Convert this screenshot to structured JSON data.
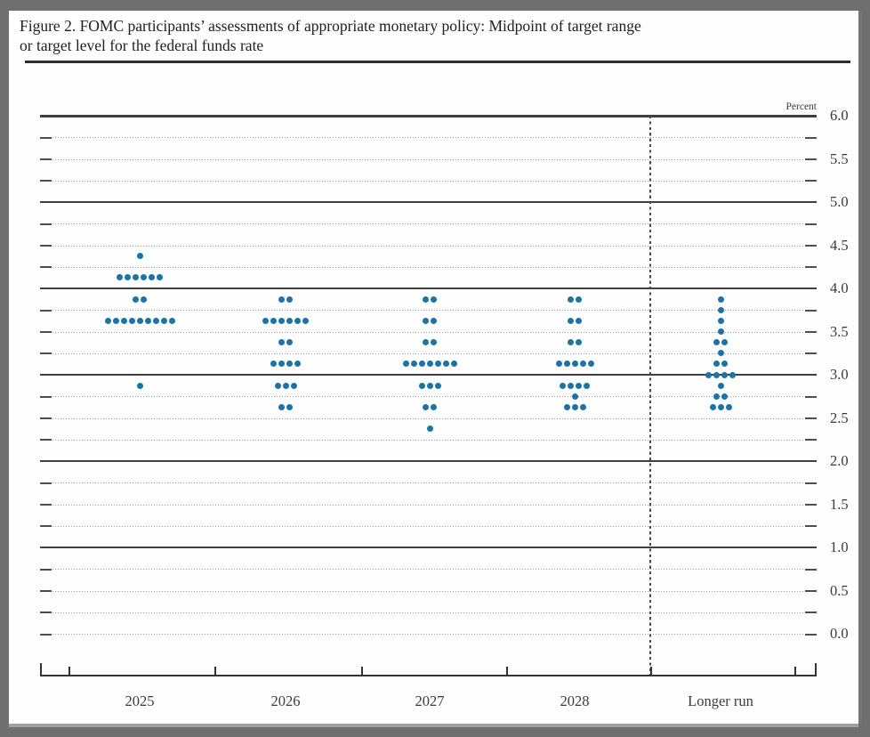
{
  "page": {
    "title_line1": "Figure 2. FOMC participants’ assessments of appropriate monetary policy: Midpoint of target range",
    "title_line2": "or target level for the federal funds rate"
  },
  "chart_data": {
    "type": "scatter",
    "subtype": "fomc-dot-plot",
    "title": "Figure 2. FOMC participants’ assessments of appropriate monetary policy: Midpoint of target range or target level for the federal funds rate",
    "unit_label": "Percent",
    "categories": [
      "2025",
      "2026",
      "2027",
      "2028",
      "Longer run"
    ],
    "ylim": [
      0.0,
      6.0
    ],
    "y_minor_step": 0.25,
    "y_label_step": 0.5,
    "y_tick_labels": [
      "6.0",
      "5.5",
      "5.0",
      "4.5",
      "4.0",
      "3.5",
      "3.0",
      "2.5",
      "2.0",
      "1.5",
      "1.0",
      "0.5",
      "0.0"
    ],
    "solid_gridlines": [
      6.0,
      5.0,
      4.0,
      3.0,
      2.0,
      1.0
    ],
    "separator_after_category": "2028",
    "dot_color": "#1b74a8",
    "grid_on": true,
    "legend": null,
    "series": [
      {
        "category": "2025",
        "dots": [
          {
            "rate": 4.375,
            "count": 1
          },
          {
            "rate": 4.125,
            "count": 6
          },
          {
            "rate": 3.875,
            "count": 2
          },
          {
            "rate": 3.625,
            "count": 9
          },
          {
            "rate": 2.875,
            "count": 1
          }
        ]
      },
      {
        "category": "2026",
        "dots": [
          {
            "rate": 3.875,
            "count": 2
          },
          {
            "rate": 3.625,
            "count": 6
          },
          {
            "rate": 3.375,
            "count": 2
          },
          {
            "rate": 3.125,
            "count": 4
          },
          {
            "rate": 2.875,
            "count": 3
          },
          {
            "rate": 2.625,
            "count": 2
          }
        ]
      },
      {
        "category": "2027",
        "dots": [
          {
            "rate": 3.875,
            "count": 2
          },
          {
            "rate": 3.625,
            "count": 2
          },
          {
            "rate": 3.375,
            "count": 2
          },
          {
            "rate": 3.125,
            "count": 7
          },
          {
            "rate": 2.875,
            "count": 3
          },
          {
            "rate": 2.625,
            "count": 2
          },
          {
            "rate": 2.375,
            "count": 1
          }
        ]
      },
      {
        "category": "2028",
        "dots": [
          {
            "rate": 3.875,
            "count": 2
          },
          {
            "rate": 3.625,
            "count": 2
          },
          {
            "rate": 3.375,
            "count": 2
          },
          {
            "rate": 3.125,
            "count": 5
          },
          {
            "rate": 2.875,
            "count": 4
          },
          {
            "rate": 2.75,
            "count": 1
          },
          {
            "rate": 2.625,
            "count": 3
          }
        ]
      },
      {
        "category": "Longer run",
        "dots": [
          {
            "rate": 3.875,
            "count": 1
          },
          {
            "rate": 3.75,
            "count": 1
          },
          {
            "rate": 3.625,
            "count": 1
          },
          {
            "rate": 3.5,
            "count": 1
          },
          {
            "rate": 3.375,
            "count": 2
          },
          {
            "rate": 3.25,
            "count": 1
          },
          {
            "rate": 3.125,
            "count": 2
          },
          {
            "rate": 3.0,
            "count": 4
          },
          {
            "rate": 2.875,
            "count": 1
          },
          {
            "rate": 2.75,
            "count": 2
          },
          {
            "rate": 2.625,
            "count": 3
          }
        ]
      }
    ]
  }
}
